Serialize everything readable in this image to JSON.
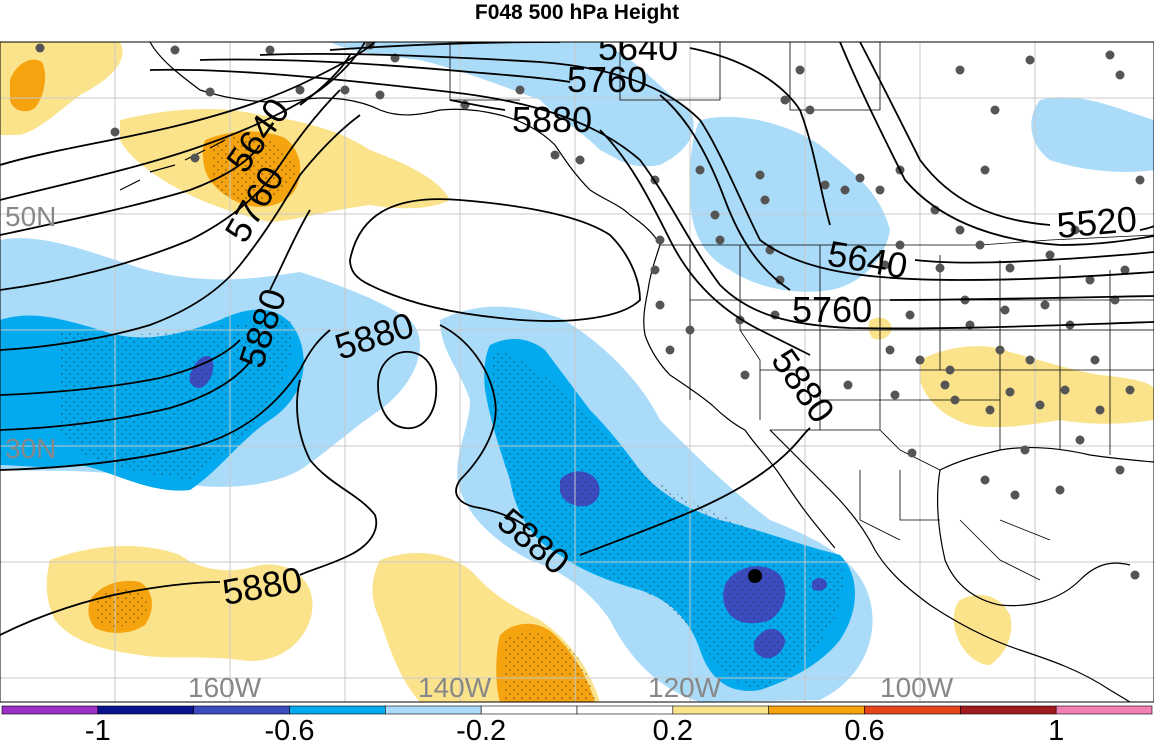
{
  "title": "F048 500 hPa Height",
  "lat_labels": [
    "50N",
    "30N"
  ],
  "lon_labels": [
    "160W",
    "140W",
    "120W",
    "100W"
  ],
  "contour_labels": {
    "c5640_top": "5640",
    "c5760_top": "5760",
    "c5880_top": "5880",
    "c5640_west": "5640",
    "c5760_west": "5760",
    "c5880_west": "5880",
    "c5880_center": "5880",
    "c5880_south": "5880",
    "c5880_sw": "5880",
    "c5520_east": "5520",
    "c5640_east": "5640",
    "c5760_east": "5760",
    "c5880_east": "5880"
  },
  "colorbar": {
    "colors": [
      "#9a30c8",
      "#0a1290",
      "#3b4cc0",
      "#04aaee",
      "#aadcfa",
      "#ffffff",
      "#ffffff",
      "#fbe38c",
      "#f5a30e",
      "#e8451c",
      "#a01a1c",
      "#f280b4"
    ],
    "tick_labels": [
      "-1",
      "-0.6",
      "-0.2",
      "0.2",
      "0.6",
      "1"
    ]
  }
}
